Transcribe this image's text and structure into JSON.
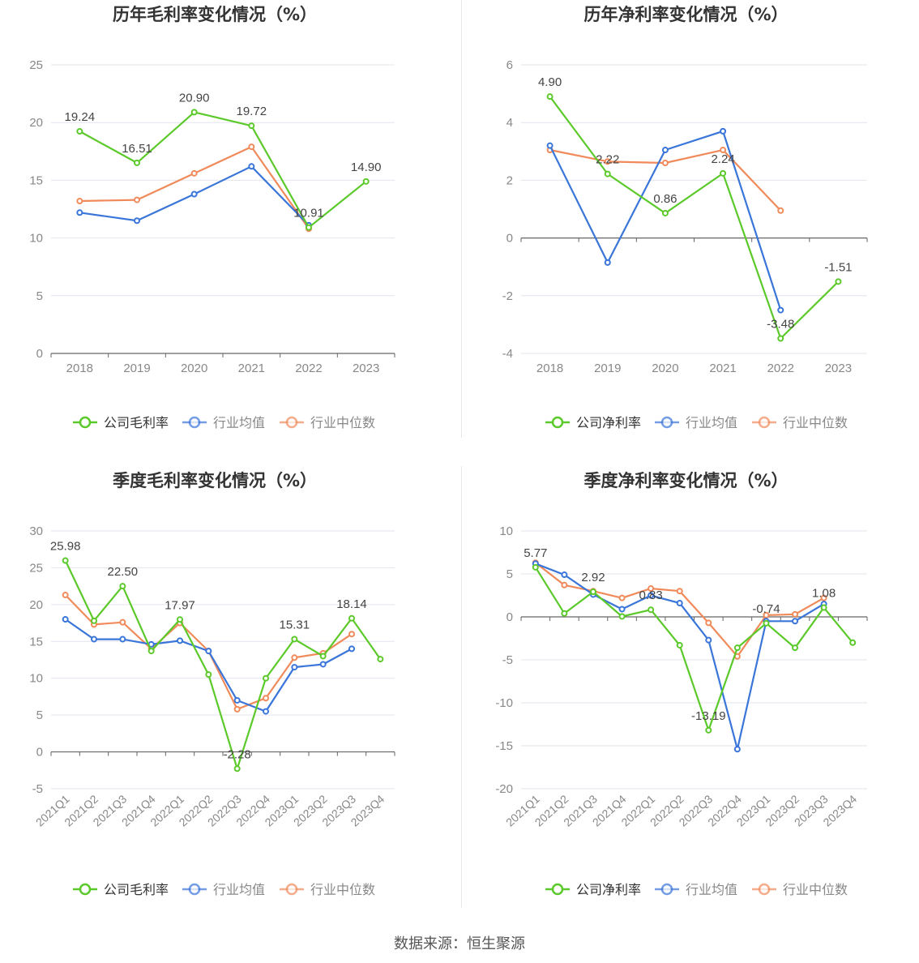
{
  "colors": {
    "company": "#5cc92a",
    "avg": "#3a75d9",
    "median": "#f08a5a",
    "grid": "#e4e4ee",
    "axis": "#666666",
    "tick": "#888888"
  },
  "footer": {
    "source": "数据来源：恒生聚源"
  },
  "chart_data": [
    {
      "type": "line",
      "title": "历年毛利率变化情况（%）",
      "categories": [
        "2018",
        "2019",
        "2020",
        "2021",
        "2022",
        "2023"
      ],
      "ylim": [
        0,
        25
      ],
      "yticks": [
        0,
        5,
        10,
        15,
        20,
        25
      ],
      "series": [
        {
          "name": "公司毛利率",
          "key": "company",
          "values": [
            19.24,
            16.51,
            20.9,
            19.72,
            10.91,
            14.9
          ],
          "labels": [
            "19.24",
            "16.51",
            "20.90",
            "19.72",
            "10.91",
            "14.90"
          ]
        },
        {
          "name": "行业均值",
          "key": "avg",
          "values": [
            12.2,
            11.5,
            13.8,
            16.2,
            11.1,
            null
          ]
        },
        {
          "name": "行业中位数",
          "key": "median",
          "values": [
            13.2,
            13.3,
            15.6,
            17.9,
            10.8,
            null
          ]
        }
      ],
      "legend": "bottom",
      "xlabel": "",
      "ylabel": ""
    },
    {
      "type": "line",
      "title": "历年净利率变化情况（%）",
      "categories": [
        "2018",
        "2019",
        "2020",
        "2021",
        "2022",
        "2023"
      ],
      "ylim": [
        -4,
        6
      ],
      "yticks": [
        -4,
        -2,
        0,
        2,
        4,
        6
      ],
      "series": [
        {
          "name": "公司净利率",
          "key": "company",
          "values": [
            4.9,
            2.22,
            0.86,
            2.24,
            -3.48,
            -1.51
          ],
          "labels": [
            "4.90",
            "2.22",
            "0.86",
            "2.24",
            "-3.48",
            "-1.51"
          ]
        },
        {
          "name": "行业均值",
          "key": "avg",
          "values": [
            3.2,
            -0.85,
            3.05,
            3.7,
            -2.5,
            null
          ]
        },
        {
          "name": "行业中位数",
          "key": "median",
          "values": [
            3.05,
            2.65,
            2.6,
            3.05,
            0.95,
            null
          ]
        }
      ],
      "legend": "bottom",
      "xlabel": "",
      "ylabel": ""
    },
    {
      "type": "line",
      "title": "季度毛利率变化情况（%）",
      "categories": [
        "2021Q1",
        "2021Q2",
        "2021Q3",
        "2021Q4",
        "2022Q1",
        "2022Q2",
        "2022Q3",
        "2022Q4",
        "2023Q1",
        "2023Q2",
        "2023Q3",
        "2023Q4"
      ],
      "ylim": [
        -5,
        30
      ],
      "yticks": [
        -5,
        0,
        5,
        10,
        15,
        20,
        25,
        30
      ],
      "series": [
        {
          "name": "公司毛利率",
          "key": "company",
          "values": [
            25.98,
            17.8,
            22.5,
            13.7,
            17.97,
            10.5,
            -2.28,
            10.0,
            15.31,
            13.0,
            18.14,
            12.6
          ],
          "labels": [
            "25.98",
            "",
            "22.50",
            "",
            "17.97",
            "",
            "-2.28",
            "",
            "15.31",
            "",
            "18.14",
            ""
          ]
        },
        {
          "name": "行业均值",
          "key": "avg",
          "values": [
            18.0,
            15.3,
            15.3,
            14.6,
            15.1,
            13.7,
            7.0,
            5.5,
            11.5,
            11.9,
            14.0,
            null
          ]
        },
        {
          "name": "行业中位数",
          "key": "median",
          "values": [
            21.3,
            17.3,
            17.6,
            14.0,
            17.5,
            13.7,
            5.8,
            7.3,
            12.8,
            13.4,
            16.0,
            null
          ]
        }
      ],
      "legend": "bottom",
      "xlabel": "",
      "ylabel": ""
    },
    {
      "type": "line",
      "title": "季度净利率变化情况（%）",
      "categories": [
        "2021Q1",
        "2021Q2",
        "2021Q3",
        "2021Q4",
        "2022Q1",
        "2022Q2",
        "2022Q3",
        "2022Q4",
        "2023Q1",
        "2023Q2",
        "2023Q3",
        "2023Q4"
      ],
      "ylim": [
        -20,
        10
      ],
      "yticks": [
        -20,
        -15,
        -10,
        -5,
        0,
        5,
        10
      ],
      "series": [
        {
          "name": "公司净利率",
          "key": "company",
          "values": [
            5.77,
            0.4,
            2.92,
            0.05,
            0.83,
            -3.3,
            -13.19,
            -3.6,
            -0.74,
            -3.6,
            1.08,
            -3.0
          ],
          "labels": [
            "5.77",
            "",
            "2.92",
            "",
            "0.83",
            "",
            "-13.19",
            "",
            "-0.74",
            "",
            "1.08",
            ""
          ]
        },
        {
          "name": "行业均值",
          "key": "avg",
          "values": [
            6.2,
            4.9,
            2.6,
            0.9,
            2.5,
            1.6,
            -2.7,
            -15.4,
            -0.5,
            -0.5,
            1.5,
            null
          ]
        },
        {
          "name": "行业中位数",
          "key": "median",
          "values": [
            6.3,
            3.7,
            3.0,
            2.2,
            3.3,
            3.0,
            -0.7,
            -4.6,
            0.2,
            0.3,
            2.2,
            null
          ]
        }
      ],
      "legend": "bottom",
      "xlabel": "",
      "ylabel": ""
    }
  ]
}
